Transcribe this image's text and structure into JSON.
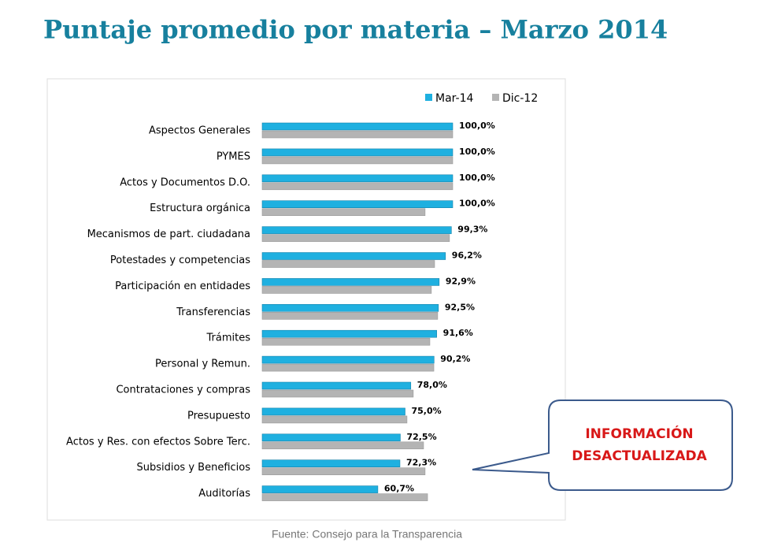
{
  "chart_data": {
    "type": "hbar",
    "title": "Puntaje promedio por  materia – Marzo 2014",
    "categories": [
      "Aspectos Generales",
      "PYMES",
      "Actos y Documentos D.O.",
      "Estructura orgánica",
      "Mecanismos de part. ciudadana",
      "Potestades y competencias",
      "Participación en entidades",
      "Transferencias",
      "Trámites",
      "Personal y Remun.",
      "Contrataciones y compras",
      "Presupuesto",
      "Actos y Res. con efectos Sobre Terc.",
      "Subsidios y Beneficios",
      "Auditorías"
    ],
    "series": [
      {
        "name": "Mar-14",
        "color": "#1fb0e0",
        "values": [
          100,
          100,
          100,
          100,
          99.3,
          96.2,
          92.9,
          92.5,
          91.6,
          90.2,
          78.0,
          75.0,
          72.5,
          72.3,
          60.7
        ],
        "value_labels": [
          "100,0%",
          "100,0%",
          "100,0%",
          "100,0%",
          "99,3%",
          "96,2%",
          "92,9%",
          "92,5%",
          "91,6%",
          "90,2%",
          "78,0%",
          "75,0%",
          "72,5%",
          "72,3%",
          "60,7%"
        ]
      },
      {
        "name": "Dic-12",
        "color": "#b4b4b4",
        "values": [
          100,
          100,
          100,
          85.5,
          98.3,
          90.5,
          88.8,
          92.1,
          88.0,
          90.1,
          79.3,
          76.0,
          84.7,
          85.5,
          86.8
        ]
      }
    ],
    "legend": "top-right",
    "annotation": [
      "INFORMACIÓN",
      "DESACTUALIZADA"
    ],
    "source": "Fuente: Consejo para la Transparencia"
  }
}
